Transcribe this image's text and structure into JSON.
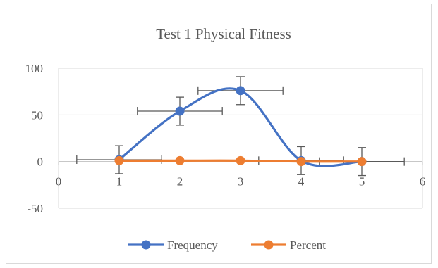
{
  "chart_data": {
    "type": "scatter",
    "title": "Test 1 Physical Fitness",
    "xlabel": "",
    "ylabel": "",
    "xlim": [
      0,
      6
    ],
    "ylim": [
      -50,
      100
    ],
    "x_ticks": [
      "0",
      "1",
      "2",
      "3",
      "4",
      "5",
      "6"
    ],
    "y_ticks": [
      "100",
      "50",
      "0",
      "-50"
    ],
    "grid": "horizontal",
    "legend": "bottom",
    "smooth_lines": true,
    "series": [
      {
        "name": "Frequency",
        "color": "#4472C4",
        "x": [
          1,
          2,
          3,
          4,
          5
        ],
        "y": [
          2,
          54,
          76,
          1,
          0
        ],
        "x_error": [
          0.7,
          0.7,
          0.7,
          0.7,
          0.7
        ],
        "y_error": [
          15,
          15,
          15,
          15,
          15
        ]
      },
      {
        "name": "Percent",
        "color": "#ED7D31",
        "x": [
          1,
          2,
          3,
          4,
          5
        ],
        "y": [
          1,
          1,
          1,
          0,
          0
        ]
      }
    ]
  }
}
